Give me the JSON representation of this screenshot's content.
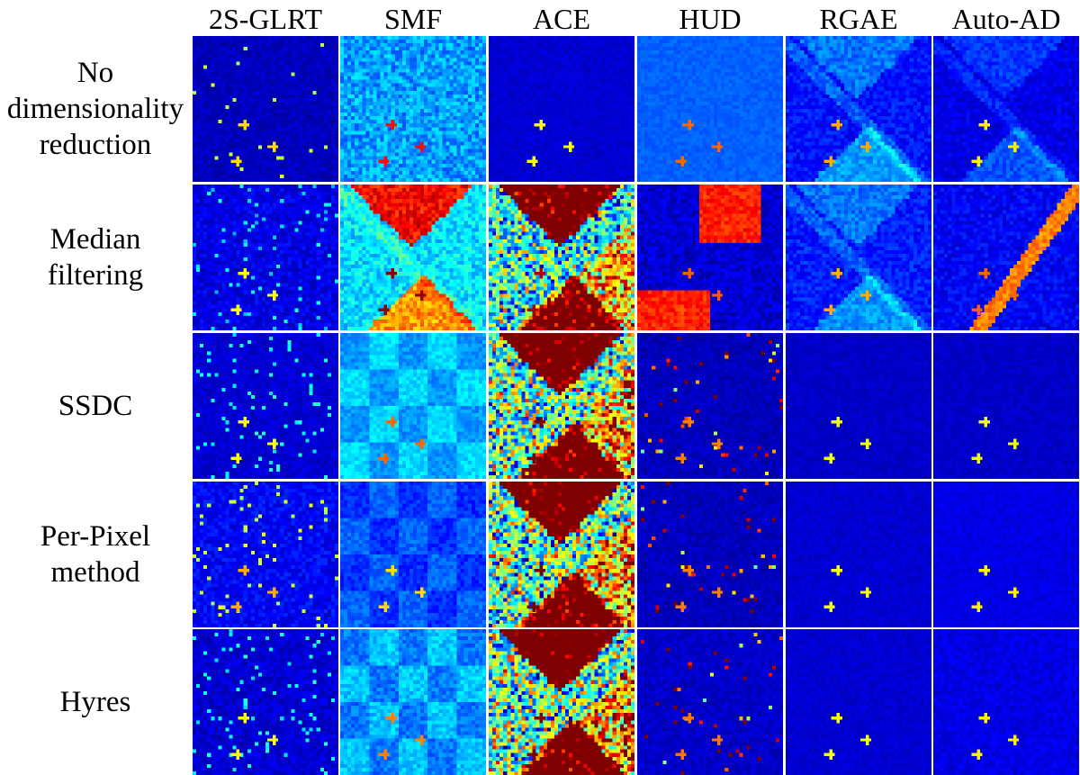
{
  "columns": [
    "2S-GLRT",
    "SMF",
    "ACE",
    "HUD",
    "RGAE",
    "Auto-AD"
  ],
  "rows": [
    {
      "label_lines": [
        "No",
        "dimensionality",
        "reduction"
      ]
    },
    {
      "label_lines": [
        "Median",
        "filtering"
      ]
    },
    {
      "label_lines": [
        "SSDC"
      ]
    },
    {
      "label_lines": [
        "Per-Pixel",
        "method"
      ]
    },
    {
      "label_lines": [
        "Hyres"
      ]
    }
  ],
  "colormap": {
    "name": "jet",
    "stops": [
      "#00007f",
      "#0000ff",
      "#007fff",
      "#00ffff",
      "#7fff7f",
      "#ffff00",
      "#ff7f00",
      "#ff0000",
      "#7f0000"
    ]
  },
  "tiles": {
    "0": [
      {
        "base": 0.06,
        "noise": 0.03,
        "pattern": "sparse-dashes",
        "intensity": 0.5,
        "seed": 11
      },
      {
        "base": 0.28,
        "noise": 0.08,
        "pattern": "scene-faint",
        "intensity": 0.45,
        "seed": 12
      },
      {
        "base": 0.08,
        "noise": 0.02,
        "pattern": "scene-faint",
        "intensity": 0.3,
        "seed": 13
      },
      {
        "base": 0.22,
        "noise": 0.02,
        "pattern": "scene-faint",
        "intensity": 0.35,
        "seed": 14
      },
      {
        "base": 0.14,
        "noise": 0.05,
        "pattern": "scene",
        "intensity": 0.4,
        "seed": 15
      },
      {
        "base": 0.1,
        "noise": 0.04,
        "pattern": "scene",
        "intensity": 0.3,
        "seed": 16
      }
    ],
    "1": [
      {
        "base": 0.1,
        "noise": 0.05,
        "pattern": "dots",
        "intensity": 0.25,
        "seed": 21
      },
      {
        "base": 0.35,
        "noise": 0.08,
        "pattern": "fields-bright",
        "intensity": 0.62,
        "seed": 22
      },
      {
        "base": 0.25,
        "noise": 0.25,
        "pattern": "fields-hot",
        "intensity": 0.85,
        "seed": 23
      },
      {
        "base": 0.08,
        "noise": 0.05,
        "pattern": "patch-hot",
        "intensity": 0.85,
        "seed": 24
      },
      {
        "base": 0.15,
        "noise": 0.05,
        "pattern": "scene",
        "intensity": 0.35,
        "seed": 25
      },
      {
        "base": 0.12,
        "noise": 0.05,
        "pattern": "stripe-band",
        "intensity": 0.7,
        "seed": 26
      }
    ],
    "2": [
      {
        "base": 0.08,
        "noise": 0.03,
        "pattern": "dots",
        "intensity": 0.3,
        "seed": 31
      },
      {
        "base": 0.22,
        "noise": 0.04,
        "pattern": "blocks",
        "intensity": 0.35,
        "seed": 32
      },
      {
        "base": 0.3,
        "noise": 0.3,
        "pattern": "fields-hot",
        "intensity": 0.9,
        "seed": 33
      },
      {
        "base": 0.06,
        "noise": 0.03,
        "pattern": "sparse-hot",
        "intensity": 0.8,
        "seed": 34
      },
      {
        "base": 0.07,
        "noise": 0.02,
        "pattern": "scene-faint",
        "intensity": 0.3,
        "seed": 35
      },
      {
        "base": 0.07,
        "noise": 0.02,
        "pattern": "scene-faint",
        "intensity": 0.3,
        "seed": 36
      }
    ],
    "3": [
      {
        "base": 0.12,
        "noise": 0.05,
        "pattern": "dots",
        "intensity": 0.45,
        "seed": 41
      },
      {
        "base": 0.12,
        "noise": 0.04,
        "pattern": "blocks",
        "intensity": 0.3,
        "seed": 42
      },
      {
        "base": 0.3,
        "noise": 0.3,
        "pattern": "fields-hot",
        "intensity": 0.9,
        "seed": 43
      },
      {
        "base": 0.06,
        "noise": 0.03,
        "pattern": "sparse-hot",
        "intensity": 0.8,
        "seed": 44
      },
      {
        "base": 0.08,
        "noise": 0.02,
        "pattern": "scene-faint",
        "intensity": 0.3,
        "seed": 45
      },
      {
        "base": 0.1,
        "noise": 0.02,
        "pattern": "scene-faint",
        "intensity": 0.3,
        "seed": 46
      }
    ],
    "4": [
      {
        "base": 0.08,
        "noise": 0.04,
        "pattern": "dots",
        "intensity": 0.3,
        "seed": 51
      },
      {
        "base": 0.18,
        "noise": 0.05,
        "pattern": "blocks",
        "intensity": 0.4,
        "seed": 52
      },
      {
        "base": 0.3,
        "noise": 0.3,
        "pattern": "fields-hot",
        "intensity": 0.9,
        "seed": 53
      },
      {
        "base": 0.07,
        "noise": 0.03,
        "pattern": "sparse-hot",
        "intensity": 0.8,
        "seed": 54
      },
      {
        "base": 0.08,
        "noise": 0.02,
        "pattern": "scene-faint",
        "intensity": 0.3,
        "seed": 55
      },
      {
        "base": 0.1,
        "noise": 0.03,
        "pattern": "scene-faint",
        "intensity": 0.3,
        "seed": 56
      }
    ]
  }
}
